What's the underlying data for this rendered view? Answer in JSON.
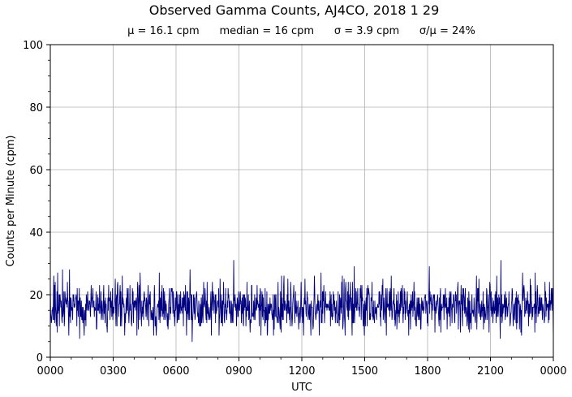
{
  "chart_data": {
    "type": "line",
    "title": "Observed Gamma Counts, AJ4CO, 2018 1 29",
    "subtitle": "μ = 16.1 cpm      median = 16 cpm      σ = 3.9 cpm      σ/μ = 24%",
    "xlabel": "UTC",
    "ylabel": "Counts per Minute (cpm)",
    "xlim": [
      0,
      1440
    ],
    "ylim": [
      0,
      100
    ],
    "x_ticks": [
      0,
      180,
      360,
      540,
      720,
      900,
      1080,
      1260,
      1440
    ],
    "x_tick_labels": [
      "0000",
      "0300",
      "0600",
      "0900",
      "1200",
      "1500",
      "1800",
      "2100",
      "0000"
    ],
    "y_ticks": [
      0,
      20,
      40,
      60,
      80,
      100
    ],
    "y_tick_labels": [
      "0",
      "20",
      "40",
      "60",
      "80",
      "100"
    ],
    "grid": true,
    "series": [
      {
        "color": "#000080",
        "sample_interval_minutes": 1,
        "stats": {
          "mean": 16.1,
          "median": 16,
          "std": 3.9
        },
        "peaks": [
          {
            "x": 525,
            "y": 31
          },
          {
            "x": 1290,
            "y": 31
          },
          {
            "x": 870,
            "y": 29
          },
          {
            "x": 1085,
            "y": 29
          },
          {
            "x": 400,
            "y": 28
          },
          {
            "x": 55,
            "y": 28
          },
          {
            "x": 35,
            "y": 28
          }
        ],
        "troughs": [
          {
            "x": 406,
            "y": 5
          },
          {
            "x": 84,
            "y": 6
          },
          {
            "x": 1288,
            "y": 6
          },
          {
            "x": 1440,
            "y": 6
          },
          {
            "x": 20,
            "y": 8
          },
          {
            "x": 770,
            "y": 7
          }
        ]
      }
    ]
  }
}
